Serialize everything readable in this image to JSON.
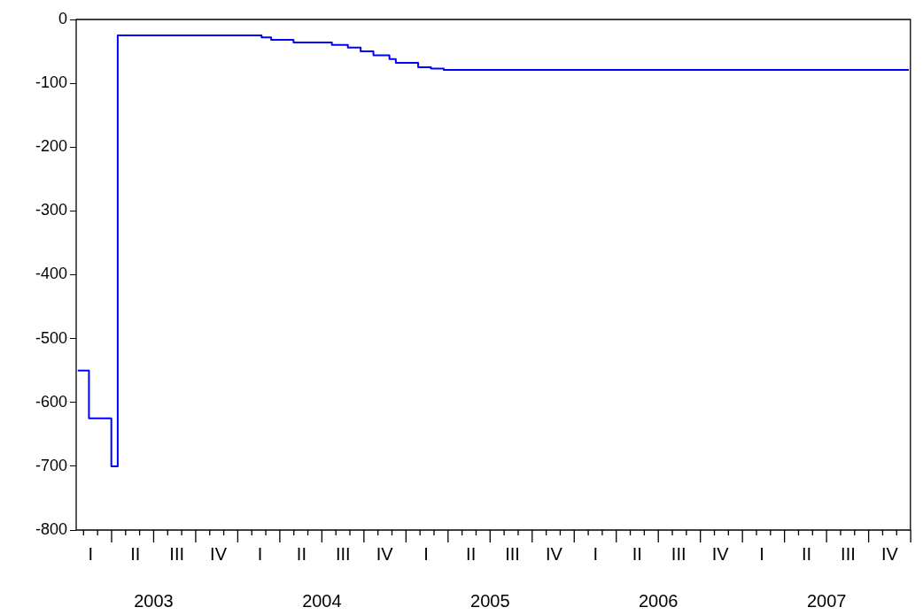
{
  "chart_data": {
    "type": "step",
    "categories": [
      null,
      null,
      null,
      null,
      "I",
      null,
      null,
      null,
      null,
      null,
      null,
      null,
      null,
      null,
      null,
      null,
      null,
      null,
      "II",
      null,
      null,
      null,
      null,
      null,
      null,
      null,
      null,
      null,
      null,
      null,
      null,
      "III",
      null,
      null,
      null,
      null,
      null,
      null,
      null,
      null,
      null,
      null,
      null,
      null,
      "IV",
      null,
      null,
      null,
      null,
      null,
      null,
      null,
      null,
      null,
      null,
      null,
      null,
      "I",
      null,
      null,
      null,
      null,
      null,
      null,
      null,
      null,
      null,
      null,
      null,
      null,
      "II",
      null,
      null,
      null,
      null,
      null,
      null,
      null,
      null,
      null,
      null,
      null,
      null,
      "III",
      null,
      null,
      null,
      null,
      null,
      null,
      null,
      null,
      null,
      null,
      null,
      null,
      "IV",
      null,
      null,
      null,
      null,
      null,
      null,
      null,
      null,
      null,
      null,
      null,
      null,
      "I",
      null,
      null,
      null,
      null,
      null,
      null,
      null,
      null,
      null,
      null,
      null,
      null,
      null,
      "II",
      null,
      null,
      null,
      null,
      null,
      null,
      null,
      null,
      null,
      null,
      null,
      null,
      "III",
      null,
      null,
      null,
      null,
      null,
      null,
      null,
      null,
      null,
      null,
      null,
      null,
      "IV",
      null,
      null,
      null,
      null,
      null,
      null,
      null,
      null,
      null,
      null,
      null,
      null,
      "I",
      null,
      null,
      null,
      null,
      null,
      null,
      null,
      null,
      null,
      null,
      null,
      null,
      "II",
      null,
      null,
      null,
      null,
      null,
      null,
      null,
      null,
      null,
      null,
      null,
      null,
      "III",
      null,
      null,
      null,
      null,
      null,
      null,
      null,
      null,
      null,
      null,
      null,
      null,
      "IV",
      null,
      null,
      null,
      null,
      null,
      null,
      null,
      null,
      null,
      null,
      null,
      null,
      "I",
      null,
      null,
      null,
      null,
      null,
      null,
      null,
      null,
      null,
      null,
      null,
      null,
      null,
      "II",
      null,
      null,
      null,
      null,
      null,
      null,
      null,
      null,
      null,
      null,
      null,
      null,
      "III",
      null,
      null,
      null,
      null,
      null,
      null,
      null,
      null,
      null,
      null,
      null,
      null,
      "IV",
      null,
      null,
      null,
      null,
      null,
      null
    ],
    "series": [
      {
        "color": "#0000ff",
        "values": [
          -550,
          -550,
          -550,
          -550,
          -625,
          -625,
          -625,
          -625,
          -625,
          -625,
          -625,
          -700,
          -700,
          -25,
          -25,
          -25,
          -25,
          -25,
          -25,
          -25,
          -25,
          -25,
          -25,
          -25,
          -25,
          -25,
          -25,
          -25,
          -25,
          -25,
          -25,
          -25,
          -25,
          -25,
          -25,
          -25,
          -25,
          -25,
          -25,
          -25,
          -25,
          -25,
          -25,
          -25,
          -25,
          -25,
          -25,
          -25,
          -25,
          -25,
          -25,
          -25,
          -25,
          -25,
          -25,
          -25,
          -25,
          -25,
          -28,
          -28,
          -28,
          -32,
          -32,
          -32,
          -32,
          -32,
          -32,
          -32,
          -36,
          -36,
          -36,
          -36,
          -36,
          -36,
          -36,
          -36,
          -36,
          -36,
          -36,
          -36,
          -40,
          -40,
          -40,
          -40,
          -40,
          -44,
          -44,
          -44,
          -44,
          -50,
          -50,
          -50,
          -50,
          -56,
          -56,
          -56,
          -56,
          -56,
          -62,
          -62,
          -68,
          -68,
          -68,
          -68,
          -68,
          -68,
          -68,
          -75,
          -75,
          -75,
          -75,
          -77,
          -77,
          -77,
          -77,
          -79,
          -79,
          -79,
          -79,
          -79,
          -79,
          -79,
          -79,
          -79,
          -79,
          -79,
          -79,
          -79,
          -79,
          -79,
          -79,
          -79,
          -79,
          -79,
          -79,
          -79,
          -79,
          -79,
          -79,
          -79,
          -79,
          -79,
          -79,
          -79,
          -79,
          -79,
          -79,
          -79,
          -79,
          -79,
          -79,
          -79,
          -79,
          -79,
          -79,
          -79,
          -79,
          -79,
          -79,
          -79,
          -79,
          -79,
          -79,
          -79,
          -79,
          -79,
          -79,
          -79,
          -79,
          -79,
          -79,
          -79,
          -79,
          -79,
          -79,
          -79,
          -79,
          -79,
          -79,
          -79,
          -79,
          -79,
          -79,
          -79,
          -79,
          -79,
          -79,
          -79,
          -79,
          -79,
          -79,
          -79,
          -79,
          -79,
          -79,
          -79,
          -79,
          -79,
          -79,
          -79,
          -79,
          -79,
          -79,
          -79,
          -79,
          -79,
          -79,
          -79,
          -79,
          -79,
          -79,
          -79,
          -79,
          -79,
          -79,
          -79,
          -79,
          -79,
          -79,
          -79,
          -79,
          -79,
          -79,
          -79,
          -79,
          -79,
          -79,
          -79,
          -79,
          -79,
          -79,
          -79,
          -79,
          -79,
          -79,
          -79,
          -79,
          -79,
          -79,
          -79,
          -79,
          -79,
          -79,
          -79,
          -79,
          -79,
          -79,
          -79,
          -79,
          -79,
          -79,
          -79,
          -79,
          -79,
          -79,
          -79,
          -79,
          -79,
          -79,
          -79,
          -79
        ]
      }
    ],
    "ylim": [
      -800,
      0
    ],
    "yticks": [
      -800,
      -700,
      -600,
      -500,
      -400,
      -300,
      -200,
      -100,
      0
    ],
    "annotations": [
      "2003",
      "2004",
      "2005",
      "2006",
      "2007"
    ],
    "grid": false,
    "legend": false,
    "line_style": "solid",
    "marker": "none"
  }
}
